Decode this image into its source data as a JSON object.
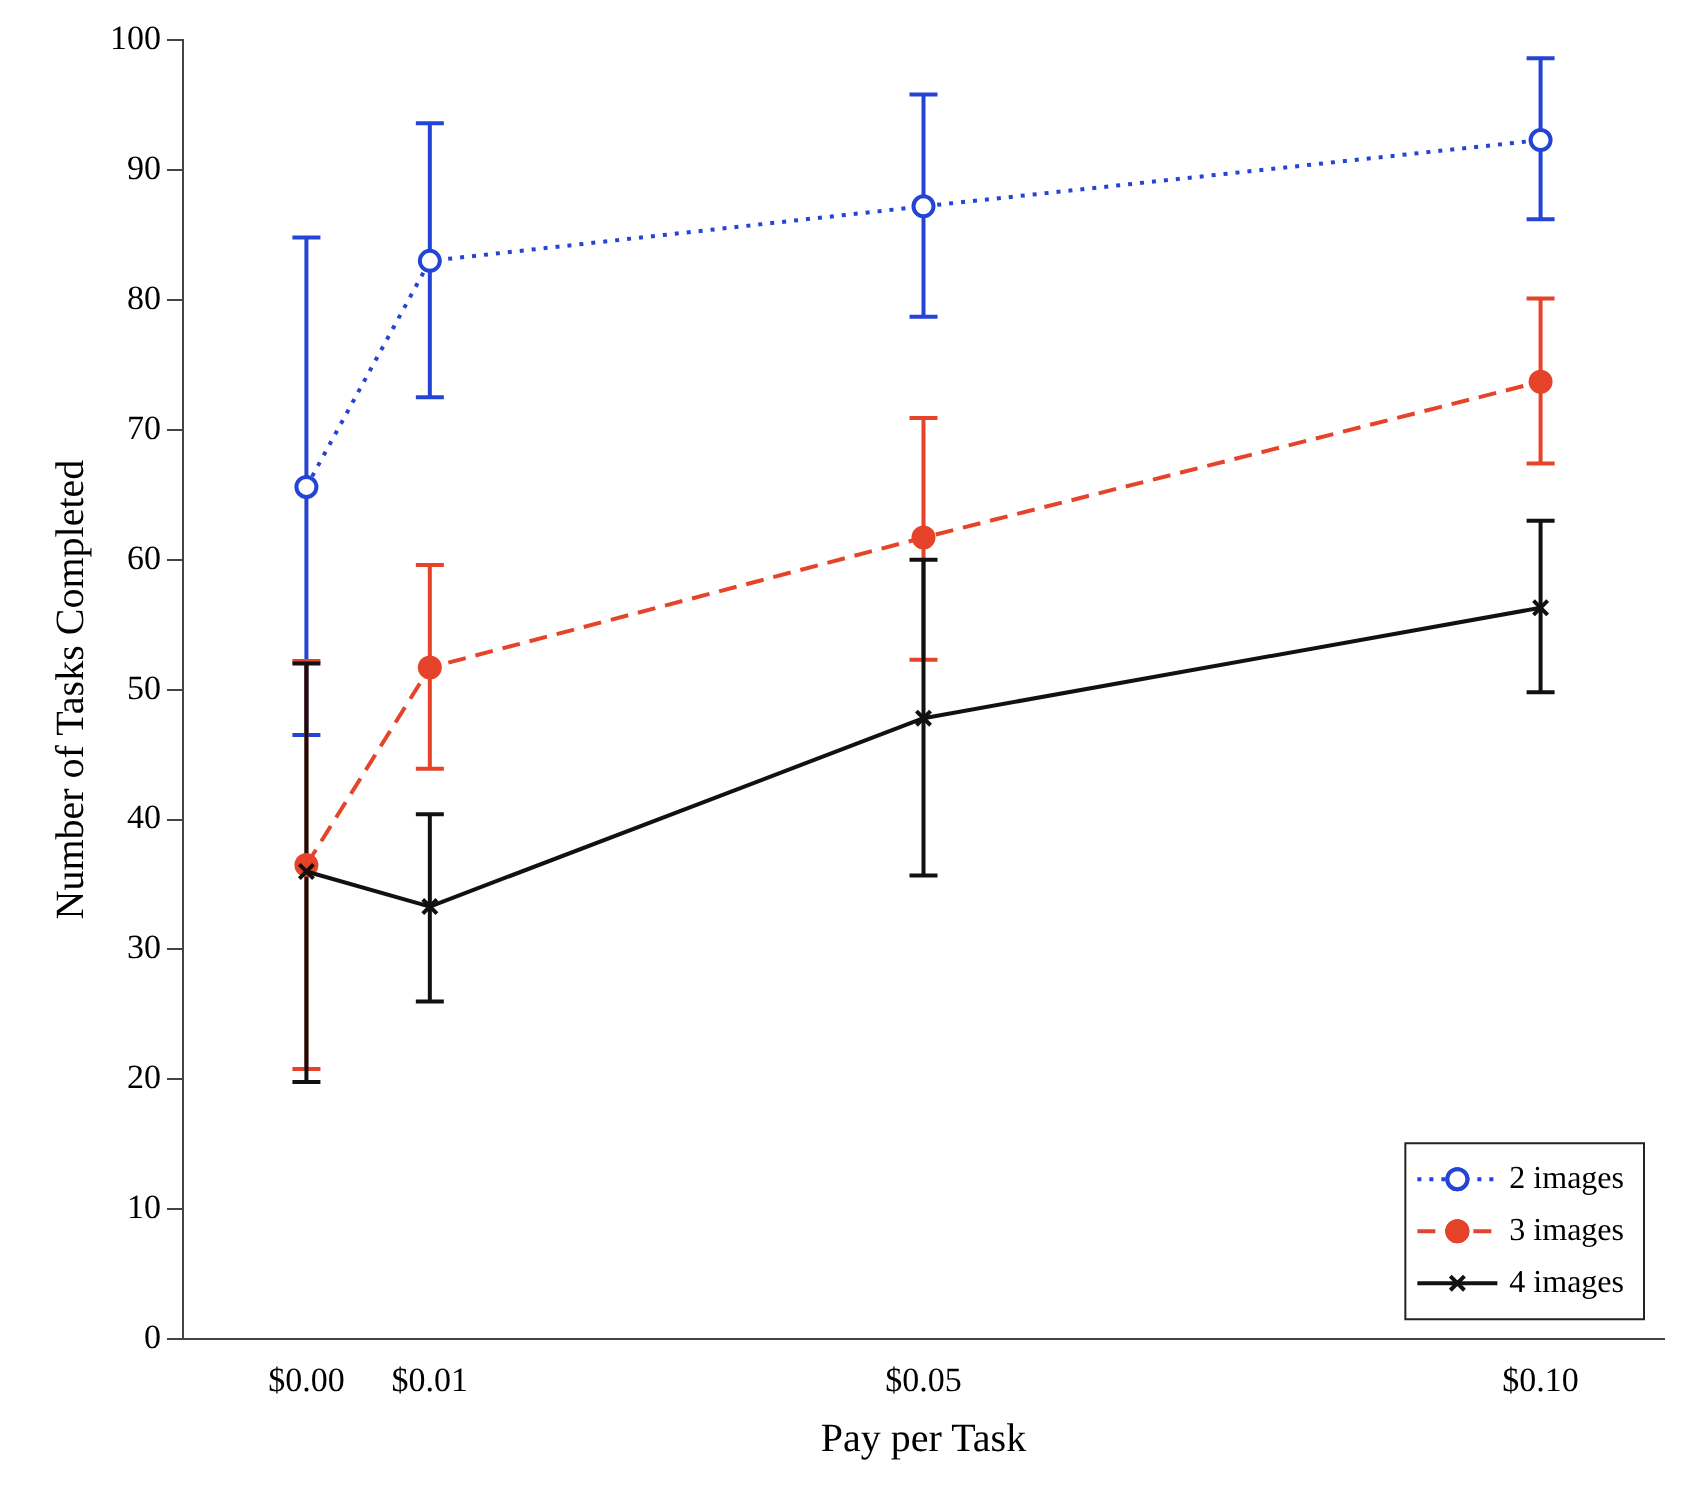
{
  "chart_data": {
    "type": "line",
    "xlabel": "Pay per Task",
    "ylabel": "Number of Tasks Completed",
    "x": [
      0,
      0.01,
      0.05,
      0.1
    ],
    "xlim": [
      -0.01,
      0.11
    ],
    "xticks": [
      {
        "value": 0,
        "label": "$0.00"
      },
      {
        "value": 0.01,
        "label": "$0.01"
      },
      {
        "value": 0.05,
        "label": "$0.05"
      },
      {
        "value": 0.1,
        "label": "$0.10"
      }
    ],
    "ylim": [
      0,
      100
    ],
    "yticks": [
      0,
      10,
      20,
      30,
      40,
      50,
      60,
      70,
      80,
      90,
      100
    ],
    "grid": false,
    "legend": "bottom right",
    "series": [
      {
        "name": "2 images",
        "color": "#2444d6",
        "values": [
          65.6,
          83,
          87.2,
          92.3
        ],
        "errors": [
          [
            46.5,
            84.8
          ],
          [
            72.5,
            93.6
          ],
          [
            78.7,
            95.8
          ],
          [
            86.2,
            98.6
          ]
        ],
        "marker": "circle",
        "line_style": "dotted"
      },
      {
        "name": "3 images",
        "color": "#e5432a",
        "values": [
          36.5,
          51.7,
          61.7,
          73.7
        ],
        "errors": [
          [
            20.8,
            52.2
          ],
          [
            43.9,
            59.6
          ],
          [
            52.3,
            70.9
          ],
          [
            67.4,
            80.1
          ]
        ],
        "marker": "circle",
        "line_style": "dashed"
      },
      {
        "name": "4 images",
        "color": "#111111",
        "values": [
          36,
          33.3,
          47.8,
          56.3
        ],
        "errors": [
          [
            19.8,
            52
          ],
          [
            26,
            40.4
          ],
          [
            35.7,
            60
          ],
          [
            49.8,
            63
          ]
        ],
        "marker": "cross",
        "line_style": "solid"
      }
    ]
  }
}
